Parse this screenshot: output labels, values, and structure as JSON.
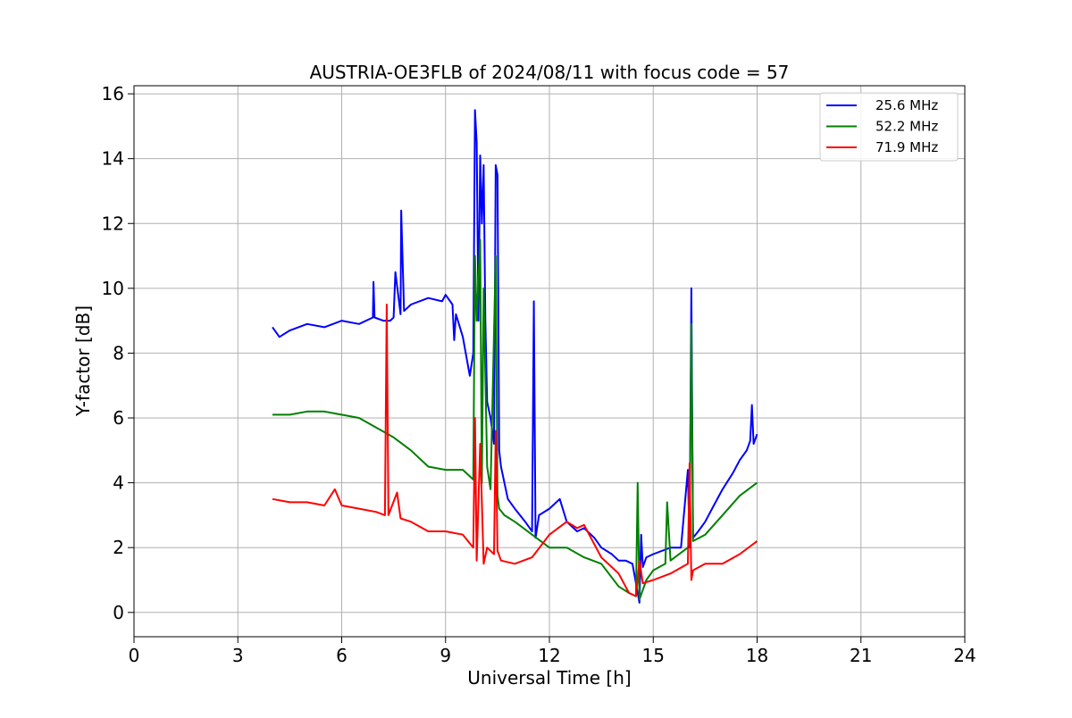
{
  "chart_data": {
    "type": "line",
    "title": "AUSTRIA-OE3FLB of 2024/08/11 with focus code = 57",
    "xlabel": "Universal Time [h]",
    "ylabel": "Y-factor [dB]",
    "xlim": [
      0,
      24
    ],
    "ylim": [
      -0.75,
      16.25
    ],
    "xticks": [
      0,
      3,
      6,
      9,
      12,
      15,
      18,
      21,
      24
    ],
    "yticks": [
      0,
      2,
      4,
      6,
      8,
      10,
      12,
      14,
      16
    ],
    "grid": true,
    "legend_position": "top-right",
    "series": [
      {
        "name": "25.6 MHz",
        "color": "#0000ff",
        "x": [
          4.0,
          4.2,
          4.5,
          5.0,
          5.5,
          6.0,
          6.5,
          6.9,
          6.92,
          6.95,
          7.2,
          7.4,
          7.5,
          7.55,
          7.7,
          7.72,
          7.8,
          8.0,
          8.5,
          8.9,
          9.0,
          9.2,
          9.25,
          9.3,
          9.5,
          9.7,
          9.8,
          9.85,
          9.9,
          9.95,
          10.0,
          10.05,
          10.1,
          10.15,
          10.2,
          10.3,
          10.4,
          10.45,
          10.5,
          10.55,
          10.6,
          10.8,
          11.0,
          11.3,
          11.5,
          11.55,
          11.6,
          11.7,
          12.0,
          12.3,
          12.5,
          12.8,
          13.0,
          13.3,
          13.5,
          13.8,
          14.0,
          14.2,
          14.4,
          14.6,
          14.65,
          14.7,
          14.8,
          15.0,
          15.5,
          15.8,
          16.0,
          16.05,
          16.1,
          16.15,
          16.3,
          16.5,
          16.7,
          17.0,
          17.3,
          17.5,
          17.7,
          17.8,
          17.85,
          17.9,
          18.0
        ],
        "y": [
          8.8,
          8.5,
          8.7,
          8.9,
          8.8,
          9.0,
          8.9,
          9.1,
          10.2,
          9.1,
          9.0,
          9.0,
          9.1,
          10.5,
          9.2,
          12.4,
          9.3,
          9.5,
          9.7,
          9.6,
          9.8,
          9.5,
          8.4,
          9.2,
          8.5,
          7.3,
          8.0,
          15.5,
          14.5,
          9.0,
          14.1,
          12.0,
          13.8,
          9.0,
          6.5,
          6.0,
          5.2,
          13.8,
          13.5,
          5.0,
          4.5,
          3.5,
          3.2,
          2.8,
          2.5,
          9.6,
          2.3,
          3.0,
          3.2,
          3.5,
          2.8,
          2.5,
          2.6,
          2.3,
          2.0,
          1.8,
          1.6,
          1.6,
          1.5,
          0.3,
          2.4,
          1.4,
          1.7,
          1.8,
          2.0,
          2.0,
          4.4,
          2.0,
          10.0,
          2.3,
          2.5,
          2.8,
          3.2,
          3.8,
          4.3,
          4.7,
          5.0,
          5.3,
          6.4,
          5.2,
          5.5
        ]
      },
      {
        "name": "52.2 MHz",
        "color": "#008000",
        "x": [
          4.0,
          4.5,
          5.0,
          5.5,
          6.0,
          6.5,
          7.0,
          7.5,
          8.0,
          8.5,
          9.0,
          9.5,
          9.8,
          9.85,
          9.9,
          10.0,
          10.05,
          10.1,
          10.2,
          10.3,
          10.45,
          10.5,
          10.55,
          10.7,
          11.0,
          11.5,
          12.0,
          12.5,
          13.0,
          13.5,
          14.0,
          14.3,
          14.5,
          14.55,
          14.6,
          14.8,
          15.0,
          15.35,
          15.4,
          15.5,
          16.0,
          16.05,
          16.1,
          16.15,
          16.5,
          17.0,
          17.5,
          18.0
        ],
        "y": [
          6.1,
          6.1,
          6.2,
          6.2,
          6.1,
          6.0,
          5.7,
          5.4,
          5.0,
          4.5,
          4.4,
          4.4,
          4.1,
          11.0,
          9.0,
          11.5,
          4.0,
          10.0,
          4.5,
          3.8,
          11.0,
          3.6,
          3.2,
          3.0,
          2.8,
          2.4,
          2.0,
          2.0,
          1.7,
          1.5,
          0.8,
          0.6,
          0.5,
          4.0,
          0.4,
          1.0,
          1.3,
          1.5,
          3.4,
          1.6,
          2.0,
          2.2,
          8.9,
          2.2,
          2.4,
          3.0,
          3.6,
          4.0
        ]
      },
      {
        "name": "71.9 MHz",
        "color": "#ff0000",
        "x": [
          4.0,
          4.5,
          5.0,
          5.5,
          5.8,
          6.0,
          6.5,
          7.0,
          7.25,
          7.3,
          7.35,
          7.6,
          7.7,
          8.0,
          8.5,
          9.0,
          9.5,
          9.8,
          9.85,
          9.9,
          10.0,
          10.1,
          10.2,
          10.4,
          10.45,
          10.5,
          10.6,
          11.0,
          11.5,
          12.0,
          12.5,
          12.8,
          13.0,
          13.5,
          14.0,
          14.3,
          14.5,
          14.6,
          14.7,
          15.0,
          15.5,
          16.0,
          16.05,
          16.1,
          16.15,
          16.5,
          17.0,
          17.5,
          18.0
        ],
        "y": [
          3.5,
          3.4,
          3.4,
          3.3,
          3.8,
          3.3,
          3.2,
          3.1,
          3.0,
          9.5,
          3.0,
          3.7,
          2.9,
          2.8,
          2.5,
          2.5,
          2.4,
          2.0,
          6.0,
          1.6,
          5.2,
          1.5,
          2.0,
          1.8,
          5.6,
          1.9,
          1.6,
          1.5,
          1.7,
          2.4,
          2.8,
          2.6,
          2.7,
          1.7,
          1.2,
          0.6,
          0.5,
          1.6,
          0.9,
          1.0,
          1.2,
          1.5,
          4.6,
          1.0,
          1.3,
          1.5,
          1.5,
          1.8,
          2.2
        ]
      }
    ]
  }
}
